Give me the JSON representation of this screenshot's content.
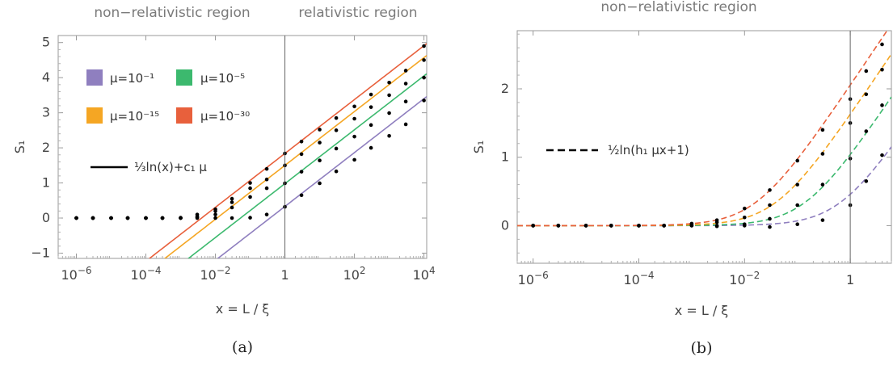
{
  "chart_data": [
    {
      "type": "line",
      "panel": "a",
      "caption": "(a)",
      "xscale": "log",
      "xlim": [
        3e-07,
        12000
      ],
      "ylim": [
        -1.15,
        5.2
      ],
      "xlabel": "x = L / ξ",
      "ylabel": "S₁",
      "xticks": [
        1e-06,
        0.0001,
        0.01,
        1,
        100,
        10000
      ],
      "xtick_labels": [
        [
          "10",
          "−6"
        ],
        [
          "10",
          "−4"
        ],
        [
          "10",
          "−2"
        ],
        [
          "1",
          ""
        ],
        [
          "10",
          "2"
        ],
        [
          "10",
          "4"
        ]
      ],
      "yticks": [
        -1,
        0,
        1,
        2,
        3,
        4,
        5
      ],
      "ytick_labels": [
        "−1",
        "0",
        "1",
        "2",
        "3",
        "4",
        "5"
      ],
      "region_labels": {
        "left": "non−relativistic region",
        "right": "relativistic region"
      },
      "divider_x": 1,
      "legend": {
        "entries": [
          {
            "label": "μ=10⁻¹",
            "color": "#8f7fbf"
          },
          {
            "label": "μ=10⁻⁵",
            "color": "#3cb96e"
          },
          {
            "label": "μ=10⁻¹⁵",
            "color": "#f5a623"
          },
          {
            "label": "μ=10⁻³⁰",
            "color": "#e8603c"
          }
        ],
        "line_label": "⅓ln(x)+c₁ μ"
      },
      "series": [
        {
          "mu": "1e-1",
          "color": "#8f7fbf",
          "intercept": 0.33
        },
        {
          "mu": "1e-5",
          "color": "#3cb96e",
          "intercept": 0.98
        },
        {
          "mu": "1e-15",
          "color": "#f5a623",
          "intercept": 1.5
        },
        {
          "mu": "1e-30",
          "color": "#e8603c",
          "intercept": 1.84
        }
      ],
      "points": {
        "x": [
          1e-06,
          3e-06,
          1e-05,
          3e-05,
          0.0001,
          0.0003,
          0.001,
          0.003,
          0.01,
          0.03,
          0.1,
          0.3,
          1,
          3,
          10,
          30,
          100,
          300,
          1000,
          3000,
          10000
        ],
        "series_values": [
          [
            0,
            0,
            0,
            0,
            0,
            0,
            0,
            0,
            0,
            0,
            0.01,
            0.1,
            0.32,
            0.65,
            0.99,
            1.33,
            1.66,
            2.0,
            2.34,
            2.67,
            3.35
          ],
          [
            0,
            0,
            0,
            0,
            0,
            0,
            0,
            0.02,
            0.1,
            0.3,
            0.6,
            0.85,
            0.99,
            1.32,
            1.64,
            1.98,
            2.32,
            2.65,
            2.99,
            3.32,
            4.0
          ],
          [
            0,
            0,
            0,
            0,
            0,
            0,
            0,
            0.05,
            0.2,
            0.45,
            0.85,
            1.1,
            1.5,
            1.82,
            2.15,
            2.5,
            2.83,
            3.16,
            3.5,
            3.83,
            4.5
          ],
          [
            0,
            0,
            0,
            0,
            0,
            0,
            0.01,
            0.1,
            0.25,
            0.55,
            1.0,
            1.4,
            1.84,
            2.18,
            2.52,
            2.85,
            3.18,
            3.52,
            3.86,
            4.2,
            4.9
          ]
        ]
      }
    },
    {
      "type": "line",
      "panel": "b",
      "caption": "(b)",
      "xscale": "log",
      "xlim": [
        5e-07,
        6
      ],
      "ylim": [
        -0.55,
        2.85
      ],
      "xlabel": "x = L / ξ",
      "ylabel": "S₁",
      "xticks": [
        1e-06,
        0.0001,
        0.01,
        1
      ],
      "xtick_labels": [
        [
          "10",
          "−6"
        ],
        [
          "10",
          "−4"
        ],
        [
          "10",
          "−2"
        ],
        [
          "1",
          ""
        ]
      ],
      "yticks": [
        0,
        1,
        2
      ],
      "ytick_labels": [
        "0",
        "1",
        "2"
      ],
      "region_label": "non−relativistic region",
      "divider_x": 1,
      "legend": {
        "line_label": "½ln(h₁ μx+1)"
      },
      "series": [
        {
          "color": "#8f7fbf",
          "h": 1.5
        },
        {
          "color": "#3cb96e",
          "h": 7.0
        },
        {
          "color": "#f5a623",
          "h": 25.0
        },
        {
          "color": "#e8603c",
          "h": 60.0
        }
      ],
      "points": {
        "x": [
          1e-06,
          3e-06,
          1e-05,
          3e-05,
          0.0001,
          0.0003,
          0.001,
          0.003,
          0.01,
          0.03,
          0.1,
          0.3,
          1,
          2,
          4
        ],
        "series_values": [
          [
            0,
            0,
            0,
            0,
            0,
            0,
            0,
            -0.01,
            0,
            -0.02,
            0.02,
            0.08,
            0.3,
            0.65,
            1.03
          ],
          [
            0,
            0,
            0,
            0,
            0,
            0,
            0,
            0,
            0.02,
            0.1,
            0.3,
            0.6,
            0.98,
            1.38,
            1.76
          ],
          [
            0,
            0,
            0,
            0,
            0,
            0,
            0.02,
            0.05,
            0.12,
            0.3,
            0.6,
            1.05,
            1.5,
            1.92,
            2.28
          ],
          [
            0,
            0,
            0,
            0,
            0,
            0,
            0.03,
            0.08,
            0.25,
            0.52,
            0.95,
            1.4,
            1.85,
            2.26,
            2.65
          ]
        ]
      }
    }
  ]
}
